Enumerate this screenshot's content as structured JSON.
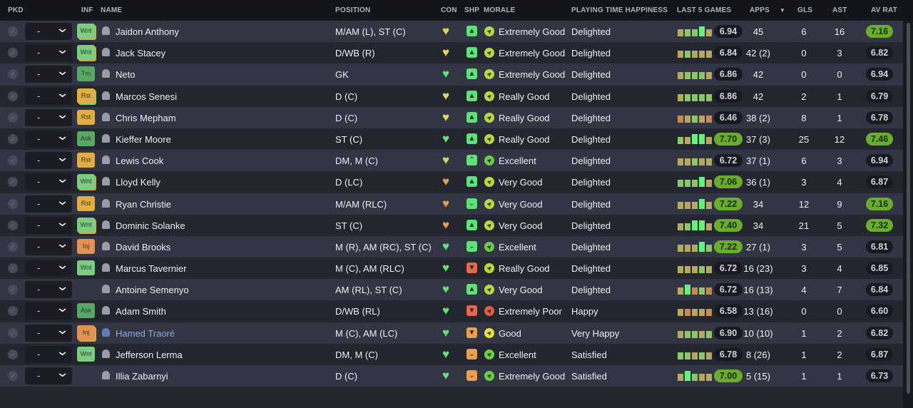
{
  "headers": {
    "pkd": "PKD",
    "inf": "INF",
    "name": "NAME",
    "position": "POSITION",
    "con": "CON",
    "shp": "SHP",
    "morale": "MORALE",
    "pth": "PLAYING TIME HAPPINESS",
    "last5": "LAST 5 GAMES",
    "apps": "APPS",
    "sort_icon": "▼",
    "gls": "GLS",
    "ast": "AST",
    "avrat": "AV RAT"
  },
  "colors": {
    "inf": {
      "Wnt": "#7ccc82",
      "Trn": "#58a865",
      "Rst": "#e3ad45",
      "Ask": "#58a865",
      "Inj": "#e49155"
    },
    "con": {
      "green": "#62e27a",
      "yellow": "#e4d45a",
      "ygreen": "#c4d86a",
      "orange": "#e3a04e"
    },
    "shp": {
      "green": "#5ee07a",
      "red": "#e2694f",
      "orange": "#e8a050"
    },
    "morale": {
      "yg": "#b7d840",
      "green": "#6ccc48",
      "yellow": "#e9df44",
      "red": "#e25a4a"
    },
    "last5": {
      "y": "#b4a863",
      "o": "#c98a4f",
      "g": "#8dc56a",
      "G": "#66f07d"
    }
  },
  "players": [
    {
      "pick": "-",
      "inf": "Wnt",
      "inf_stack": "y",
      "name": "Jaidon Anthony",
      "position": "M/AM (L), ST (C)",
      "con": "yellow",
      "shp": "thumbs-up",
      "shp_color": "green",
      "morale_color": "yg",
      "morale": "Extremely Good",
      "pth": "Delighted",
      "last5": "yggGy",
      "form": "6.94",
      "apps": "45",
      "gls": "6",
      "ast": "16",
      "avrat": "7.16"
    },
    {
      "pick": "-",
      "inf": "Wnt",
      "inf_stack": "y",
      "name": "Jack Stacey",
      "position": "D/WB (R)",
      "con": "yellow",
      "shp": "thumbs-up",
      "shp_color": "green",
      "morale_color": "yg",
      "morale": "Extremely Good",
      "pth": "Delighted",
      "last5": "ygyyy",
      "form": "6.84",
      "apps": "42 (2)",
      "gls": "0",
      "ast": "3",
      "avrat": "6.82"
    },
    {
      "pick": "-",
      "inf": "Trn",
      "name": "Neto",
      "position": "GK",
      "con": "green",
      "shp": "thumbs-up",
      "shp_color": "green",
      "morale_color": "yg",
      "morale": "Extremely Good",
      "pth": "Delighted",
      "last5": "ygggy",
      "form": "6.86",
      "apps": "42",
      "gls": "0",
      "ast": "0",
      "avrat": "6.94"
    },
    {
      "pick": "-",
      "inf": "Rst",
      "inf_stack": "g",
      "name": "Marcos Senesi",
      "position": "D (C)",
      "con": "yellow",
      "shp": "thumbs-up",
      "shp_color": "green",
      "morale_color": "yg",
      "morale": "Really Good",
      "pth": "Delighted",
      "last5": "ygggg",
      "form": "6.86",
      "apps": "42",
      "gls": "2",
      "ast": "1",
      "avrat": "6.79"
    },
    {
      "pick": "-",
      "inf": "Rst",
      "name": "Chris Mepham",
      "position": "D (C)",
      "con": "yellow",
      "shp": "thumbs-up",
      "shp_color": "green",
      "morale_color": "yg",
      "morale": "Really Good",
      "pth": "Delighted",
      "last5": "oygyo",
      "form": "6.46",
      "apps": "38 (2)",
      "gls": "8",
      "ast": "1",
      "avrat": "6.78"
    },
    {
      "pick": "-",
      "inf": "Ask",
      "name": "Kieffer Moore",
      "position": "ST (C)",
      "con": "green",
      "shp": "thumbs-up",
      "shp_color": "green",
      "morale_color": "yg",
      "morale": "Really Good",
      "pth": "Delighted",
      "last5": "gyGGy",
      "form": "7.70",
      "apps": "37 (3)",
      "gls": "25",
      "ast": "12",
      "avrat": "7.46"
    },
    {
      "pick": "-",
      "inf": "Rst",
      "name": "Lewis Cook",
      "position": "DM, M (C)",
      "con": "ygreen",
      "shp": "chevron-up",
      "shp_color": "green",
      "morale_color": "green",
      "morale": "Excellent",
      "pth": "Delighted",
      "last5": "yygyy",
      "form": "6.72",
      "apps": "37 (1)",
      "gls": "6",
      "ast": "3",
      "avrat": "6.94"
    },
    {
      "pick": "-",
      "inf": "Wnt",
      "inf_stack": "y",
      "name": "Lloyd Kelly",
      "position": "D (LC)",
      "con": "orange",
      "shp": "thumbs-up",
      "shp_color": "green",
      "morale_color": "yg",
      "morale": "Very Good",
      "pth": "Delighted",
      "last5": "gggGy",
      "form": "7.06",
      "apps": "36 (1)",
      "gls": "3",
      "ast": "4",
      "avrat": "6.87"
    },
    {
      "pick": "-",
      "inf": "Rst",
      "name": "Ryan Christie",
      "position": "M/AM (RLC)",
      "con": "orange",
      "shp": "chevron-down",
      "shp_color": "green",
      "morale_color": "yg",
      "morale": "Very Good",
      "pth": "Delighted",
      "last5": "yyyGy",
      "form": "7.22",
      "apps": "34",
      "gls": "12",
      "ast": "9",
      "avrat": "7.16"
    },
    {
      "pick": "-",
      "inf": "Wnt",
      "inf_stack": "y",
      "name": "Dominic Solanke",
      "position": "ST (C)",
      "con": "orange",
      "shp": "thumbs-up",
      "shp_color": "green",
      "morale_color": "yg",
      "morale": "Very Good",
      "pth": "Delighted",
      "last5": "ygGGy",
      "form": "7.40",
      "apps": "34",
      "gls": "21",
      "ast": "5",
      "avrat": "7.32"
    },
    {
      "pick": "-",
      "inf": "Inj",
      "name": "David Brooks",
      "position": "M (R), AM (RC), ST (C)",
      "con": "green",
      "shp": "chevron-down",
      "shp_color": "green",
      "morale_color": "green",
      "morale": "Excellent",
      "pth": "Delighted",
      "last5": "yyyGg",
      "form": "7.22",
      "apps": "27 (1)",
      "gls": "3",
      "ast": "5",
      "avrat": "6.81"
    },
    {
      "pick": "-",
      "inf": "Wnt",
      "name": "Marcus Tavernier",
      "position": "M (C), AM (RLC)",
      "con": "green",
      "shp": "thumbs-down",
      "shp_color": "red",
      "morale_color": "yg",
      "morale": "Really Good",
      "pth": "Delighted",
      "last5": "yyygy",
      "form": "6.72",
      "apps": "16 (23)",
      "gls": "3",
      "ast": "4",
      "avrat": "6.85"
    },
    {
      "pick": "-",
      "inf": "",
      "name": "Antoine Semenyo",
      "position": "AM (RL), ST (C)",
      "con": "green",
      "shp": "thumbs-up",
      "shp_color": "green",
      "morale_color": "yg",
      "morale": "Very Good",
      "pth": "Delighted",
      "last5": "yGogo",
      "form": "6.72",
      "apps": "16 (13)",
      "gls": "4",
      "ast": "7",
      "avrat": "6.84"
    },
    {
      "pick": "-",
      "inf": "Ask",
      "name": "Adam Smith",
      "position": "D/WB (RL)",
      "con": "green",
      "shp": "thumbs-down",
      "shp_color": "red",
      "morale_color": "red",
      "morale": "Extremely Poor",
      "pth": "Happy",
      "last5": "yoyyo",
      "form": "6.58",
      "apps": "13 (16)",
      "gls": "0",
      "ast": "0",
      "avrat": "6.60"
    },
    {
      "pick": "-",
      "inf": "Inj",
      "inf_stack": "y",
      "name": "Hamed Traoré",
      "name_link": true,
      "position": "M (C), AM (LC)",
      "con": "green",
      "shp": "thumbs-down",
      "shp_color": "orange",
      "morale_color": "yellow",
      "morale": "Good",
      "pth": "Very Happy",
      "last5": "yggyg",
      "form": "6.90",
      "apps": "10 (10)",
      "gls": "1",
      "ast": "2",
      "avrat": "6.82"
    },
    {
      "pick": "-",
      "inf": "Wnt",
      "name": "Jefferson Lerma",
      "position": "DM, M (C)",
      "con": "green",
      "shp": "chevron-down",
      "shp_color": "orange",
      "morale_color": "green",
      "morale": "Excellent",
      "pth": "Satisfied",
      "last5": "ggygy",
      "form": "6.78",
      "apps": "8 (26)",
      "gls": "1",
      "ast": "2",
      "avrat": "6.87"
    },
    {
      "pick": "-",
      "inf": "",
      "name": "Illia Zabarnyi",
      "position": "D (C)",
      "con": "green",
      "shp": "chevron-down",
      "shp_color": "orange",
      "morale_color": "green",
      "morale": "Extremely Good",
      "pth": "Satisfied",
      "last5": "yGgyy",
      "form": "7.00",
      "apps": "5 (15)",
      "gls": "1",
      "ast": "1",
      "avrat": "6.73"
    }
  ]
}
